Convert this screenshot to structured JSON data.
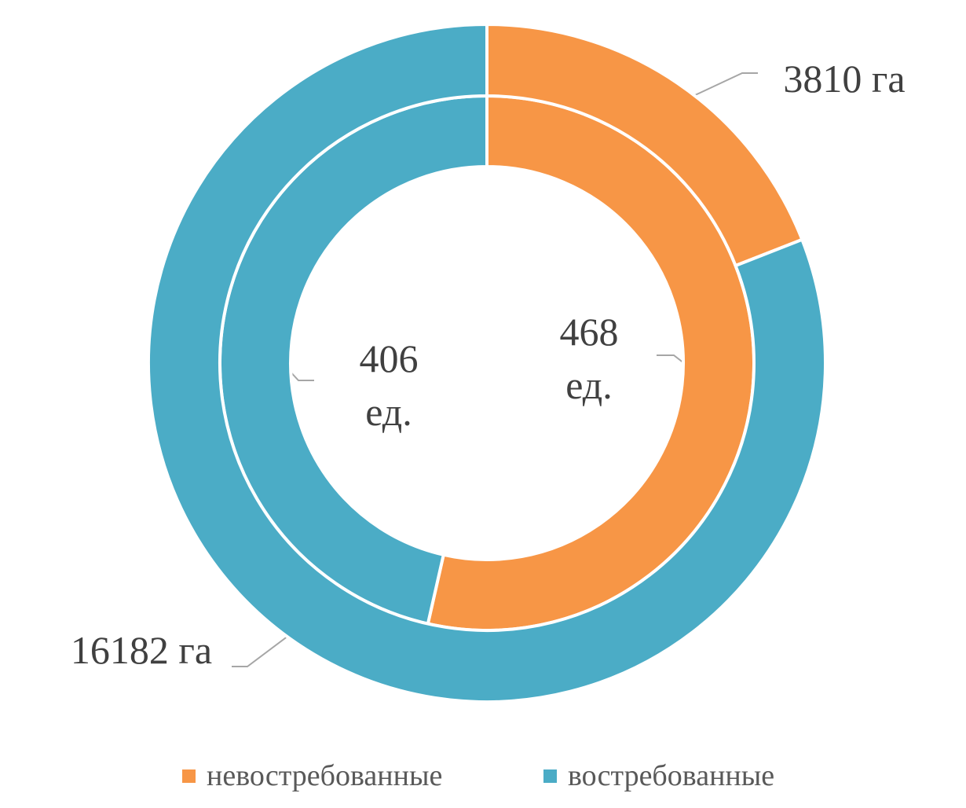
{
  "chart_data": {
    "type": "donut",
    "categories": [
      "невостребованные",
      "востребованные"
    ],
    "colors": [
      "#f79646",
      "#4bacc6"
    ],
    "series": [
      {
        "values": [
          468,
          406
        ],
        "value_labels": [
          "468 ед.",
          "406 ед."
        ]
      },
      {
        "values": [
          3810,
          16182
        ],
        "value_labels": [
          "3810 га",
          "16182 га"
        ]
      }
    ]
  }
}
